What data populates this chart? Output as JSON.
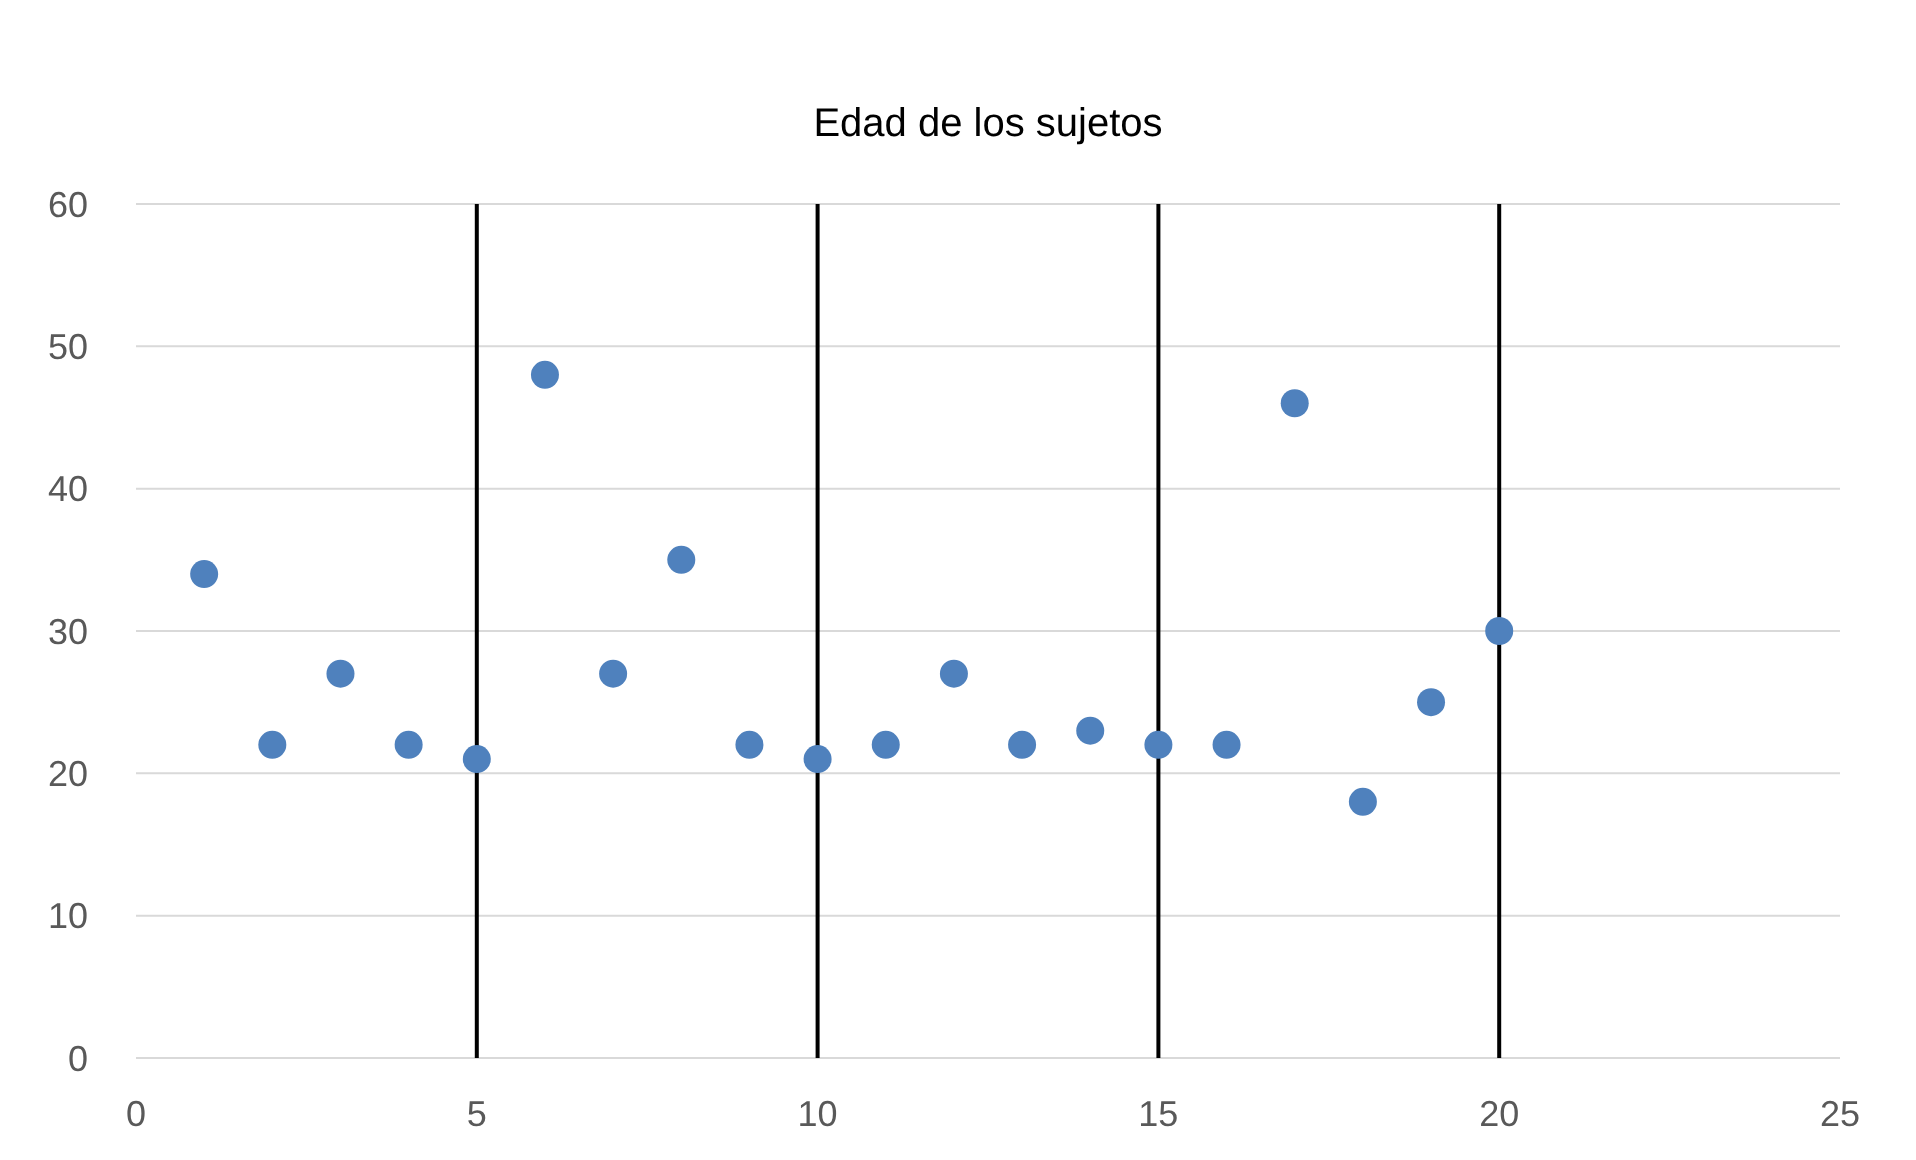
{
  "chart_data": {
    "type": "scatter",
    "title": "Edad de los sujetos",
    "x": [
      1,
      2,
      3,
      4,
      5,
      6,
      7,
      8,
      9,
      10,
      11,
      12,
      13,
      14,
      15,
      16,
      17,
      18,
      19,
      20
    ],
    "series": [
      {
        "color": "#4f81bd",
        "values": [
          34,
          22,
          27,
          22,
          21,
          48,
          27,
          35,
          22,
          21,
          22,
          27,
          22,
          23,
          22,
          22,
          46,
          18,
          25,
          30
        ]
      }
    ],
    "xlim": [
      0,
      25
    ],
    "xticks": [
      0,
      5,
      10,
      15,
      20,
      25
    ],
    "ylim": [
      0,
      60
    ],
    "yticks": [
      0,
      10,
      20,
      30,
      40,
      50,
      60
    ],
    "grid": "y",
    "marker": "circle",
    "ref_lines": [
      {
        "axis": "x",
        "value": 5,
        "color": "#000000"
      },
      {
        "axis": "x",
        "value": 10,
        "color": "#000000"
      },
      {
        "axis": "x",
        "value": 15,
        "color": "#000000"
      },
      {
        "axis": "x",
        "value": 20,
        "color": "#000000"
      }
    ]
  }
}
